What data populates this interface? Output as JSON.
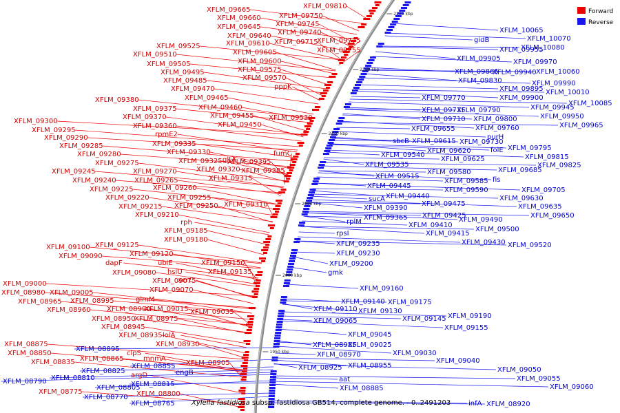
{
  "legend": {
    "forward_label": "Forward",
    "reverse_label": "Reverse",
    "forward_color": "#ee0000",
    "reverse_color": "#1818ee"
  },
  "caption": {
    "organism": "Xylella fastidiosa",
    "rest": " subsp. fastidiosa GB514, complete genome. - 0..2491203"
  },
  "ticks": [
    "2200 kbp",
    "2150 kbp",
    "2100 kbp",
    "2050 kbp",
    "2000 kbp",
    "1950 kbp"
  ],
  "forward_labels": [
    "XFLM_09810",
    "XFLM_09665",
    "XFLM_09750",
    "XFLM_09660",
    "XFLM_09745",
    "XFLM_09645",
    "XFLM_09740",
    "XFLM_09640",
    "XFLM_09610",
    "XFLM_09715",
    "XFLM_09775",
    "XFLM_09525",
    "XFLM_09755",
    "XFLM_09510",
    "XFLM_09605",
    "XFLM_09600",
    "XFLM_09505",
    "XFLM_09575",
    "XFLM_09495",
    "XFLM_09570",
    "XFLM_09485",
    "pppK",
    "XFLM_09470",
    "XFLM_09465",
    "XFLM_09380",
    "XFLM_09460",
    "XFLM_09375",
    "XFLM_09455",
    "XFLM_09530",
    "XFLM_09370",
    "XFLM_09450",
    "XFLM_09300",
    "XFLM_09360",
    "XFLM_09295",
    "rpmE2",
    "XFLM_09290",
    "XFLM_09335",
    "XFLM_09285",
    "XFLM_09330",
    "fumC",
    "XFLM_09280",
    "XFLM_09325",
    "gltA",
    "XFLM_09395",
    "XFLM_09275",
    "XFLM_09320",
    "XFLM_09385",
    "XFLM_09245",
    "XFLM_09270",
    "XFLM_09315",
    "XFLM_09240",
    "XFLM_09265",
    "XFLM_09225",
    "XFLM_09260",
    "XFLM_09220",
    "XFLM_09255",
    "XFLM_09310",
    "XFLM_09215",
    "XFLM_09250",
    "XFLM_09210",
    "rph",
    "XFLM_09185",
    "XFLM_09180",
    "XFLM_09100",
    "XFLM_09125",
    "XFLM_09090",
    "XFLM_09120",
    "dapF",
    "ubiE",
    "XFLM_09150",
    "hslU",
    "XFLM_09080",
    "XFLM_09135",
    "XFLM_09075",
    "xerC",
    "XFLM_09000",
    "XFLM_09070",
    "XFLM_08980",
    "XFLM_09005",
    "XFLM_08965",
    "XFLM_08995",
    "glmM",
    "XFLM_08960",
    "XFLM_08990",
    "XFLM_09015",
    "XFLM_09035",
    "XFLM_08950",
    "XFLM_08975",
    "XFLM_08945",
    "XFLM_08935",
    "lolA",
    "XFLM_08930",
    "XFLM_08875",
    "XFLM_08850",
    "clpS",
    "XFLM_08865",
    "mnmA",
    "XFLM_08835",
    "XFLM_08905",
    "argD",
    "XFLM_08775",
    "XFLM_08800"
  ],
  "reverse_labels": [
    "XFLM_10065",
    "XFLM_10070",
    "gidB",
    "XFLM_09955",
    "XFLM_10080",
    "XFLM_09905",
    "XFLM_09970",
    "XFLM_09865",
    "XFLM_09940",
    "XFLM_10060",
    "XFLM_09830",
    "XFLM_09990",
    "XFLM_09895",
    "XFLM_10010",
    "XFLM_09770",
    "XFLM_09900",
    "XFLM_09945",
    "XFLM_10085",
    "XFLM_09735",
    "XFLM_09790",
    "XFLM_09950",
    "XFLM_09710",
    "XFLM_09800",
    "XFLM_09965",
    "XFLM_09655",
    "XFLM_09760",
    "purH",
    "sbcB",
    "XFLM_09615",
    "XFLM_09730",
    "XFLM_09620",
    "folE",
    "XFLM_09795",
    "XFLM_09540",
    "XFLM_09625",
    "XFLM_09815",
    "XFLM_09535",
    "XFLM_09685",
    "XFLM_09825",
    "XFLM_09580",
    "fis",
    "XFLM_09515",
    "XFLM_09585",
    "XFLM_09445",
    "XFLM_09590",
    "XFLM_09705",
    "XFLM_09440",
    "XFLM_09630",
    "sucA",
    "XFLM_09475",
    "XFLM_09635",
    "XFLM_09390",
    "XFLM_09650",
    "XFLM_09425",
    "XFLM_09365",
    "XFLM_09490",
    "rplM",
    "XFLM_09410",
    "XFLM_09500",
    "rpsI",
    "XFLM_09415",
    "XFLM_09430",
    "XFLM_09520",
    "XFLM_09235",
    "XFLM_09230",
    "XFLM_09200",
    "gmk",
    "XFLM_09160",
    "XFLM_09140",
    "XFLM_09175",
    "XFLM_09130",
    "XFLM_09110",
    "XFLM_09190",
    "XFLM_09145",
    "XFLM_09065",
    "XFLM_09155",
    "XFLM_09045",
    "XFLM_08985",
    "XFLM_09025",
    "XFLM_08970",
    "XFLM_09030",
    "XFLM_08955",
    "XFLM_08925",
    "XFLM_09040",
    "XFLM_08895",
    "XFLM_08855",
    "XFLM_09050",
    "XFLM_08825",
    "engB",
    "aat",
    "XFLM_08790",
    "XFLM_08810",
    "XFLM_08885",
    "XFLM_09055",
    "XFLM_08815",
    "XFLM_08805",
    "XFLM_09060",
    "XFLM_08770",
    "infA",
    "XFLM_08920",
    "XFLM_08765"
  ]
}
